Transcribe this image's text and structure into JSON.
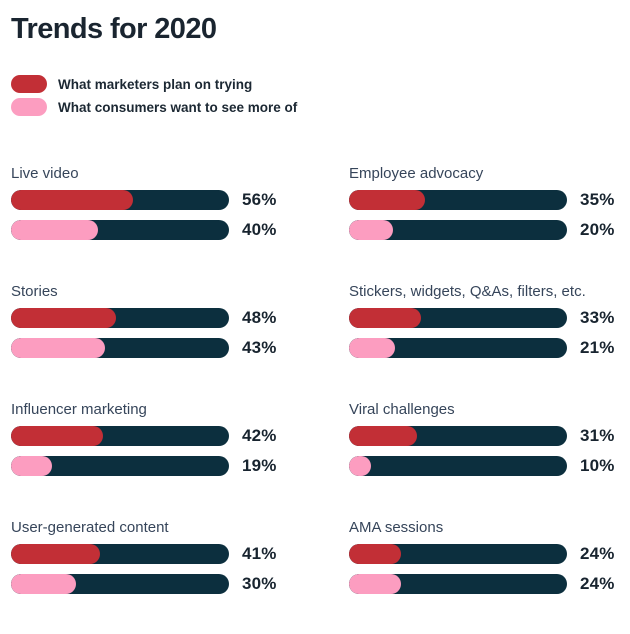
{
  "page": {
    "title": "Trends for 2020"
  },
  "chart_data": {
    "type": "bar",
    "orientation": "horizontal",
    "title": "Trends for 2020",
    "unit": "%",
    "xlim": [
      0,
      100
    ],
    "grid": "off",
    "legend_position": "top-left",
    "track_color": "#0c2f3e",
    "text_color": "#1a2530",
    "categories": [
      "Live video",
      "Employee advocacy",
      "Stories",
      "Stickers, widgets, Q&As, filters, etc.",
      "Influencer marketing",
      "Viral challenges",
      "User-generated content",
      "AMA sessions"
    ],
    "series": [
      {
        "name": "What marketers plan on trying",
        "color": "#c22f36",
        "values": [
          56,
          35,
          48,
          33,
          42,
          31,
          41,
          24
        ]
      },
      {
        "name": "What consumers want to see more of",
        "color": "#fc9dc0",
        "values": [
          40,
          20,
          43,
          21,
          19,
          10,
          30,
          24
        ]
      }
    ]
  }
}
